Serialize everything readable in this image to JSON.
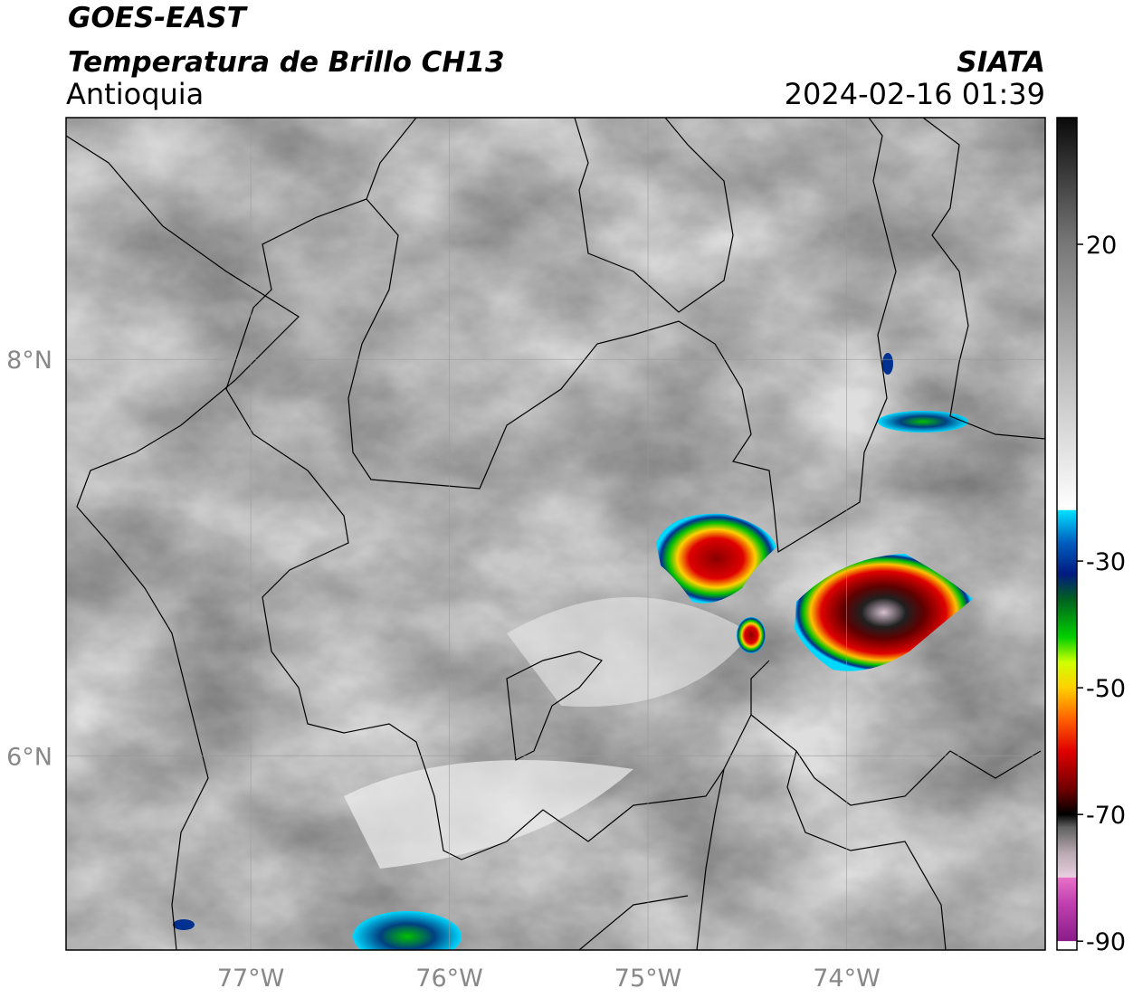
{
  "header": {
    "satellite": "GOES-EAST",
    "product": "Temperatura de Brillo CH13",
    "region": "Antioquia",
    "source": "SIATA",
    "datetime": "2024-02-16 01:39"
  },
  "map": {
    "xlim": [
      -77.93,
      -73.0
    ],
    "ylim": [
      5.02,
      9.22
    ],
    "xticks": [
      {
        "value": -77,
        "label": "77°W"
      },
      {
        "value": -76,
        "label": "76°W"
      },
      {
        "value": -75,
        "label": "75°W"
      },
      {
        "value": -74,
        "label": "74°W"
      }
    ],
    "yticks": [
      {
        "value": 6,
        "label": "6°N"
      },
      {
        "value": 8,
        "label": "8°N"
      }
    ],
    "grid": true
  },
  "colorbar": {
    "lim": [
      -91.4,
      40
    ],
    "ticks": [
      -90,
      -70,
      -50,
      -30,
      20
    ],
    "stops": [
      {
        "value": -91.4,
        "color": "#ffffff"
      },
      {
        "value": -90.01,
        "color": "#ffffff"
      },
      {
        "value": -90,
        "color": "#8a1c8a"
      },
      {
        "value": -84,
        "color": "#c040b0"
      },
      {
        "value": -80,
        "color": "#e870c8"
      },
      {
        "value": -79.9,
        "color": "#e8d0e0"
      },
      {
        "value": -76,
        "color": "#b8a8b0"
      },
      {
        "value": -72,
        "color": "#606060"
      },
      {
        "value": -70,
        "color": "#000000"
      },
      {
        "value": -66,
        "color": "#700000"
      },
      {
        "value": -60,
        "color": "#e00000"
      },
      {
        "value": -55,
        "color": "#ff6000"
      },
      {
        "value": -50,
        "color": "#ffd000"
      },
      {
        "value": -46,
        "color": "#d0ff00"
      },
      {
        "value": -42,
        "color": "#00d000"
      },
      {
        "value": -36,
        "color": "#006020"
      },
      {
        "value": -32,
        "color": "#001a80"
      },
      {
        "value": -27,
        "color": "#0060c0"
      },
      {
        "value": -22,
        "color": "#00e0ff"
      },
      {
        "value": -21.9,
        "color": "#ffffff"
      },
      {
        "value": 0,
        "color": "#bcbcbc"
      },
      {
        "value": 20,
        "color": "#787878"
      },
      {
        "value": 40,
        "color": "#0a0a0a"
      }
    ]
  }
}
